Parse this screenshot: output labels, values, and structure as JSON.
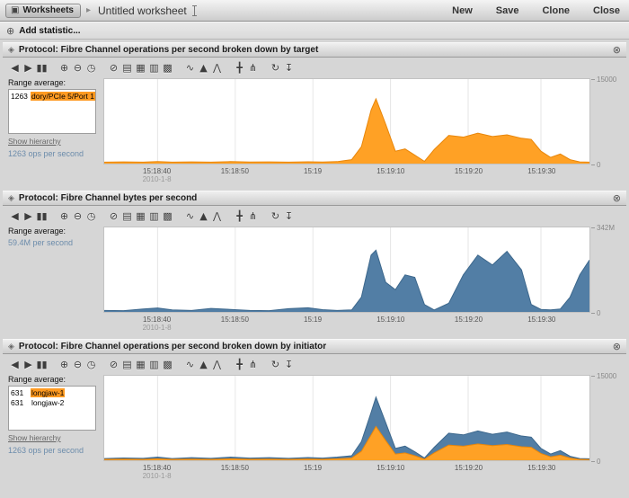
{
  "ui": {
    "worksheets_icon_glyph": "▣",
    "breadcrumb_arrow_glyph": "▸",
    "add_icon_glyph": "⊕",
    "drag_glyph": "◈",
    "close_glyph": "⊗"
  },
  "topbar": {
    "worksheets_button": "Worksheets",
    "worksheet_title": "Untitled worksheet",
    "actions": [
      {
        "label": "New"
      },
      {
        "label": "Save"
      },
      {
        "label": "Clone"
      },
      {
        "label": "Close"
      }
    ]
  },
  "add_statistic": {
    "label": "Add statistic..."
  },
  "toolbar_icons": [
    {
      "name": "step-back",
      "glyph": "◀"
    },
    {
      "name": "step-forward",
      "glyph": "▶"
    },
    {
      "name": "pause",
      "glyph": "▮▮"
    },
    {
      "name": "zoom-in",
      "glyph": "⊕",
      "gap": true
    },
    {
      "name": "zoom-out",
      "glyph": "⊖"
    },
    {
      "name": "time-range",
      "glyph": "◷"
    },
    {
      "name": "show-minimum",
      "glyph": "⊘",
      "gap": true
    },
    {
      "name": "outline-view",
      "glyph": "▤"
    },
    {
      "name": "table-view",
      "glyph": "▦"
    },
    {
      "name": "grid-view",
      "glyph": "▥"
    },
    {
      "name": "matrix-view",
      "glyph": "▩"
    },
    {
      "name": "line-graph",
      "glyph": "∿",
      "gap": true
    },
    {
      "name": "mountain-graph",
      "glyph": "▲"
    },
    {
      "name": "quantize",
      "glyph": "⋀"
    },
    {
      "name": "crosshair",
      "glyph": "╋",
      "gap": true
    },
    {
      "name": "drilldown",
      "glyph": "⋔"
    },
    {
      "name": "sync-worksheet",
      "glyph": "↻",
      "gap": true
    },
    {
      "name": "export",
      "glyph": "↧"
    }
  ],
  "charts": [
    {
      "title": "Protocol: Fibre Channel operations per second broken down by target",
      "range_label": "Range average:",
      "legend": [
        {
          "value": "1263",
          "name": "dory/PCIe 5/Port 1",
          "highlight": "#ff9a21"
        }
      ],
      "show_hierarchy": "Show hierarchy",
      "unit_text": "1263 ops per second",
      "chart_data": {
        "type": "area",
        "stacked": false,
        "ylim": [
          0,
          15000
        ],
        "y_axis_labels": {
          "max": "15000",
          "min": "0"
        },
        "x_ticks": [
          {
            "label": "15:18:40",
            "x": 11
          },
          {
            "label": "15:18:50",
            "x": 27
          },
          {
            "label": "15:19",
            "x": 43
          },
          {
            "label": "15:19:10",
            "x": 59
          },
          {
            "label": "15:19:20",
            "x": 75
          },
          {
            "label": "15:19:30",
            "x": 90
          }
        ],
        "date_label": "2010-1-8",
        "x": [
          0,
          4,
          8,
          11,
          14,
          18,
          22,
          26,
          30,
          34,
          38,
          42,
          45,
          48,
          51,
          53,
          55,
          56,
          58,
          60,
          62,
          64,
          66,
          68,
          71,
          74,
          77,
          80,
          83,
          86,
          88,
          90,
          92,
          94,
          96,
          98,
          100
        ],
        "series": [
          {
            "name": "dory/PCIe 5/Port 1",
            "color": "#ffa125",
            "edge": "#e8860a",
            "values": [
              250,
              300,
              250,
              350,
              250,
              300,
              250,
              350,
              280,
              300,
              260,
              320,
              280,
              350,
              700,
              3000,
              9500,
              11500,
              7000,
              2200,
              2600,
              1500,
              400,
              2500,
              5000,
              4700,
              5400,
              4800,
              5100,
              4500,
              4300,
              2200,
              1100,
              1700,
              700,
              300,
              250
            ]
          }
        ]
      }
    },
    {
      "title": "Protocol: Fibre Channel bytes per second",
      "range_label": "Range average:",
      "legend": [],
      "show_hierarchy": null,
      "unit_text": "59.4M per second",
      "chart_data": {
        "type": "area",
        "stacked": false,
        "ylim": [
          0,
          342
        ],
        "y_axis_labels": {
          "max": "342M",
          "min": "0"
        },
        "x_ticks": [
          {
            "label": "15:18:40",
            "x": 11
          },
          {
            "label": "15:18:50",
            "x": 27
          },
          {
            "label": "15:19",
            "x": 43
          },
          {
            "label": "15:19:10",
            "x": 59
          },
          {
            "label": "15:19:20",
            "x": 75
          },
          {
            "label": "15:19:30",
            "x": 90
          }
        ],
        "date_label": "2010-1-8",
        "x": [
          0,
          4,
          8,
          11,
          14,
          18,
          22,
          26,
          30,
          34,
          38,
          42,
          45,
          48,
          51,
          53,
          55,
          56,
          58,
          60,
          62,
          64,
          66,
          68,
          71,
          74,
          77,
          80,
          83,
          86,
          88,
          90,
          92,
          94,
          96,
          98,
          100
        ],
        "series": [
          {
            "name": "bytes per second",
            "color": "#527ea5",
            "edge": "#3c678c",
            "values": [
              6,
              5,
              12,
              16,
              8,
              6,
              14,
              10,
              6,
              5,
              13,
              17,
              9,
              6,
              8,
              60,
              230,
              250,
              120,
              90,
              150,
              140,
              30,
              8,
              35,
              150,
              230,
              190,
              245,
              170,
              30,
              10,
              8,
              12,
              60,
              150,
              210
            ]
          }
        ]
      }
    },
    {
      "title": "Protocol: Fibre Channel operations per second broken down by initiator",
      "range_label": "Range average:",
      "legend": [
        {
          "value": "631",
          "name": "longjaw-1",
          "highlight": "#ff9a21"
        },
        {
          "value": "631",
          "name": "longjaw-2",
          "highlight": null
        }
      ],
      "show_hierarchy": "Show hierarchy",
      "unit_text": "1263 ops per second",
      "chart_data": {
        "type": "area",
        "stacked": true,
        "ylim": [
          0,
          15000
        ],
        "y_axis_labels": {
          "max": "15000",
          "min": "0"
        },
        "x_ticks": [
          {
            "label": "15:18:40",
            "x": 11
          },
          {
            "label": "15:18:50",
            "x": 27
          },
          {
            "label": "15:19",
            "x": 43
          },
          {
            "label": "15:19:10",
            "x": 59
          },
          {
            "label": "15:19:20",
            "x": 75
          },
          {
            "label": "15:19:30",
            "x": 90
          }
        ],
        "date_label": "2010-1-8",
        "x": [
          0,
          4,
          8,
          11,
          14,
          18,
          22,
          26,
          30,
          34,
          38,
          42,
          45,
          48,
          51,
          53,
          55,
          56,
          58,
          60,
          62,
          64,
          66,
          68,
          71,
          74,
          77,
          80,
          83,
          86,
          88,
          90,
          92,
          94,
          96,
          98,
          100
        ],
        "series": [
          {
            "name": "longjaw-1",
            "color": "#ffa125",
            "edge": "#e8860a",
            "values": [
              150,
              200,
              150,
              250,
              150,
              200,
              150,
              250,
              180,
              200,
              160,
              220,
              180,
              250,
              400,
              1600,
              4500,
              6000,
              3500,
              1100,
              1300,
              800,
              200,
              1300,
              2700,
              2500,
              2900,
              2600,
              2800,
              2400,
              2300,
              1200,
              600,
              900,
              400,
              150,
              120
            ]
          },
          {
            "name": "longjaw-2",
            "color": "#527ea5",
            "edge": "#3c678c",
            "values": [
              150,
              200,
              180,
              300,
              150,
              250,
              180,
              300,
              200,
              250,
              180,
              250,
              200,
              300,
              400,
              1700,
              4000,
              5200,
              3200,
              1000,
              1200,
              700,
              200,
              1000,
              2100,
              2000,
              2300,
              2000,
              2200,
              1900,
              1800,
              900,
              500,
              800,
              300,
              150,
              130
            ]
          }
        ]
      }
    }
  ]
}
